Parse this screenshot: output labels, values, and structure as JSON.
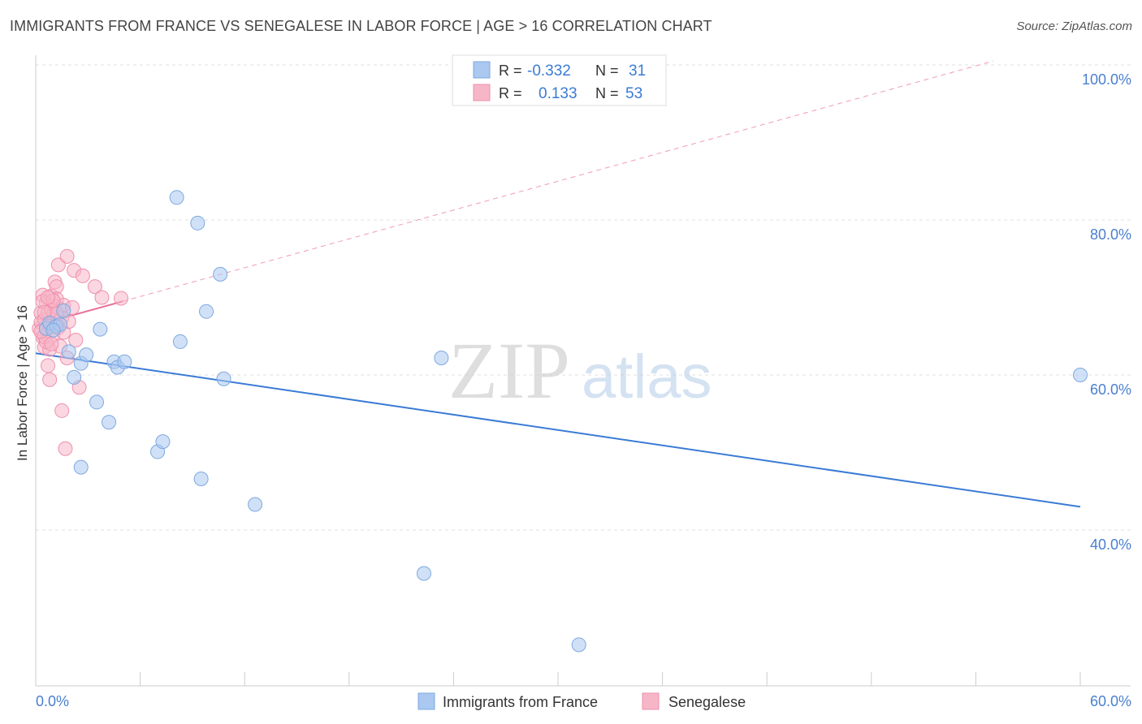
{
  "title": "IMMIGRANTS FROM FRANCE VS SENEGALESE IN LABOR FORCE | AGE > 16 CORRELATION CHART",
  "source": "Source: ZipAtlas.com",
  "watermark": {
    "zip": "ZIP",
    "atlas": "atlas"
  },
  "legend_box": {
    "rows": [
      {
        "r_label": "R =",
        "r_value": "-0.332",
        "n_label": "N =",
        "n_value": "31",
        "color": "#aac8f0"
      },
      {
        "r_label": "R =",
        "r_value": "0.133",
        "n_label": "N =",
        "n_value": "53",
        "color": "#f7b6c8"
      }
    ]
  },
  "bottom_legend": [
    {
      "label": "Immigrants from France",
      "color": "#aac8f0"
    },
    {
      "label": "Senegalese",
      "color": "#f7b6c8"
    }
  ],
  "colors": {
    "blue": "#3a7bd5",
    "pink": "#e8709a",
    "blue_fill": "#aac8f0",
    "pink_fill": "#f7b6c8",
    "tick_text": "#4a7fd0"
  },
  "chart_data": {
    "type": "scatter",
    "title": "IMMIGRANTS FROM FRANCE VS SENEGALESE IN LABOR FORCE | AGE > 16 CORRELATION CHART",
    "xlabel": "",
    "ylabel": "In Labor Force | Age > 16",
    "xlim": [
      0,
      60
    ],
    "ylim": [
      23,
      102
    ],
    "x_tick_labels": [
      {
        "value": 0,
        "label": "0.0%"
      },
      {
        "value": 60,
        "label": "60.0%"
      }
    ],
    "y_tick_labels": [
      {
        "value": 100,
        "label": "100.0%"
      },
      {
        "value": 80,
        "label": "80.0%"
      },
      {
        "value": 60,
        "label": "60.0%"
      },
      {
        "value": 40,
        "label": "40.0%"
      }
    ],
    "grid": true,
    "legend_position": "top-center",
    "series": [
      {
        "name": "Immigrants from France",
        "r": -0.332,
        "n": 31,
        "color": "#aac8f0",
        "trend": {
          "x": [
            0,
            60
          ],
          "y": [
            62.8,
            43.0
          ],
          "style": "solid"
        },
        "points": [
          [
            0.6,
            66.0
          ],
          [
            0.8,
            66.7
          ],
          [
            1.2,
            66.3
          ],
          [
            1.4,
            66.5
          ],
          [
            1.6,
            68.3
          ],
          [
            1.9,
            63.0
          ],
          [
            2.2,
            59.7
          ],
          [
            2.6,
            61.5
          ],
          [
            2.9,
            62.6
          ],
          [
            3.5,
            56.5
          ],
          [
            3.7,
            65.9
          ],
          [
            4.2,
            53.9
          ],
          [
            4.5,
            61.7
          ],
          [
            4.7,
            61.0
          ],
          [
            5.1,
            61.7
          ],
          [
            7.0,
            50.1
          ],
          [
            7.3,
            51.4
          ],
          [
            8.1,
            82.9
          ],
          [
            8.3,
            64.3
          ],
          [
            9.3,
            79.6
          ],
          [
            9.5,
            46.6
          ],
          [
            9.8,
            68.2
          ],
          [
            10.6,
            73.0
          ],
          [
            10.8,
            59.5
          ],
          [
            12.6,
            43.3
          ],
          [
            2.6,
            48.1
          ],
          [
            22.3,
            34.4
          ],
          [
            23.3,
            62.2
          ],
          [
            31.2,
            25.2
          ],
          [
            60.0,
            60.0
          ],
          [
            1.0,
            65.8
          ]
        ]
      },
      {
        "name": "Senegalese",
        "r": 0.133,
        "n": 53,
        "color": "#f7b6c8",
        "trend": {
          "x": [
            0,
            5
          ],
          "y": [
            66.4,
            69.5
          ],
          "style": "solid",
          "extended": {
            "x": [
              5,
              55
            ],
            "y": [
              69.5,
              100.5
            ],
            "style": "dashed"
          }
        },
        "points": [
          [
            0.2,
            66.0
          ],
          [
            0.3,
            66.8
          ],
          [
            0.3,
            68.0
          ],
          [
            0.4,
            70.3
          ],
          [
            0.4,
            64.9
          ],
          [
            0.5,
            63.6
          ],
          [
            0.5,
            67.2
          ],
          [
            0.6,
            65.9
          ],
          [
            0.6,
            69.3
          ],
          [
            0.7,
            68.1
          ],
          [
            0.7,
            61.2
          ],
          [
            0.8,
            63.3
          ],
          [
            0.8,
            59.4
          ],
          [
            0.9,
            66.7
          ],
          [
            0.9,
            70.2
          ],
          [
            1.0,
            67.7
          ],
          [
            1.0,
            65.2
          ],
          [
            1.1,
            68.9
          ],
          [
            1.1,
            72.0
          ],
          [
            1.2,
            71.4
          ],
          [
            1.2,
            69.8
          ],
          [
            1.3,
            74.2
          ],
          [
            1.3,
            66.1
          ],
          [
            1.4,
            68.5
          ],
          [
            1.4,
            63.7
          ],
          [
            1.5,
            55.4
          ],
          [
            1.5,
            67.4
          ],
          [
            1.6,
            69.0
          ],
          [
            1.6,
            65.5
          ],
          [
            1.7,
            50.5
          ],
          [
            1.8,
            75.3
          ],
          [
            1.8,
            62.2
          ],
          [
            1.9,
            66.9
          ],
          [
            2.1,
            68.7
          ],
          [
            2.2,
            73.5
          ],
          [
            2.3,
            64.5
          ],
          [
            2.5,
            58.4
          ],
          [
            2.7,
            72.8
          ],
          [
            3.4,
            71.4
          ],
          [
            3.8,
            70.0
          ],
          [
            4.9,
            69.9
          ],
          [
            0.4,
            69.5
          ],
          [
            0.5,
            65.0
          ],
          [
            0.6,
            64.3
          ],
          [
            0.8,
            66.3
          ],
          [
            0.9,
            68.4
          ],
          [
            1.0,
            69.6
          ],
          [
            1.1,
            66.2
          ],
          [
            0.3,
            65.6
          ],
          [
            0.7,
            70.0
          ],
          [
            1.2,
            67.9
          ],
          [
            0.5,
            68.1
          ],
          [
            0.9,
            64.0
          ]
        ]
      }
    ]
  }
}
